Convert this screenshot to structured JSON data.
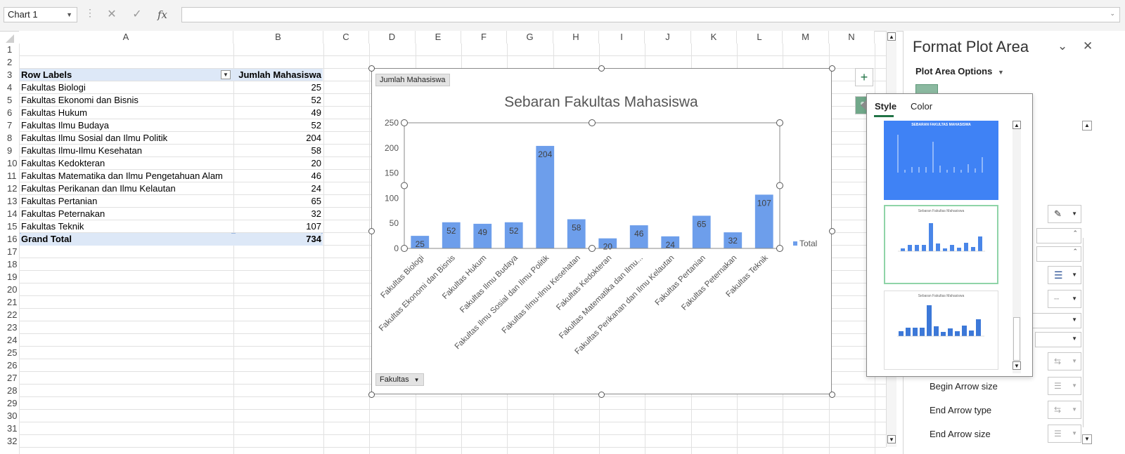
{
  "formula_bar": {
    "name_box": "Chart 1",
    "fx_label": "fx",
    "cancel_symbol": "✕",
    "enter_symbol": "✓",
    "formula": ""
  },
  "columns": [
    "A",
    "B",
    "C",
    "D",
    "E",
    "F",
    "G",
    "H",
    "I",
    "J",
    "K",
    "L",
    "M",
    "N"
  ],
  "rows": [
    "1",
    "2",
    "3",
    "4",
    "5",
    "6",
    "7",
    "8",
    "9",
    "10",
    "11",
    "12",
    "13",
    "14",
    "15",
    "16",
    "17",
    "18",
    "19",
    "20",
    "21",
    "22",
    "23",
    "24",
    "25",
    "26",
    "27",
    "28",
    "29",
    "30",
    "31",
    "32"
  ],
  "pivot": {
    "header_label": "Row Labels",
    "header_value": "Jumlah Mahasiswa",
    "rows": [
      {
        "label": "Fakultas Biologi",
        "value": "25"
      },
      {
        "label": "Fakultas Ekonomi dan Bisnis",
        "value": "52"
      },
      {
        "label": "Fakultas Hukum",
        "value": "49"
      },
      {
        "label": "Fakultas Ilmu Budaya",
        "value": "52"
      },
      {
        "label": "Fakultas Ilmu Sosial dan Ilmu Politik",
        "value": "204"
      },
      {
        "label": "Fakultas Ilmu-Ilmu Kesehatan",
        "value": "58"
      },
      {
        "label": "Fakultas Kedokteran",
        "value": "20"
      },
      {
        "label": "Fakultas Matematika dan Ilmu Pengetahuan Alam",
        "value": "46"
      },
      {
        "label": "Fakultas Perikanan dan Ilmu Kelautan",
        "value": "24"
      },
      {
        "label": "Fakultas Pertanian",
        "value": "65"
      },
      {
        "label": "Fakultas Peternakan",
        "value": "32"
      },
      {
        "label": "Fakultas Teknik",
        "value": "107"
      }
    ],
    "total_label": "Grand Total",
    "total_value": "734"
  },
  "chart_data": {
    "type": "bar",
    "title": "Sebaran Fakultas Mahasiswa",
    "categories": [
      "Fakultas Biologi",
      "Fakultas Ekonomi dan Bisnis",
      "Fakultas Hukum",
      "Fakultas Ilmu Budaya",
      "Fakultas Ilmu Sosial dan Ilmu Politik",
      "Fakultas Ilmu-Ilmu Kesehatan",
      "Fakultas Kedokteran",
      "Fakultas Matematika dan Ilmu...",
      "Fakultas Perikanan dan Ilmu Kelautan",
      "Fakultas Pertanian",
      "Fakultas Peternakan",
      "Fakultas Teknik"
    ],
    "series": [
      {
        "name": "Total",
        "values": [
          25,
          52,
          49,
          52,
          204,
          58,
          20,
          46,
          24,
          65,
          32,
          107
        ]
      }
    ],
    "ylim": [
      0,
      250
    ],
    "yticks": [
      0,
      50,
      100,
      150,
      200,
      250
    ],
    "grid": false,
    "legend": "right",
    "bar_color": "#6d9eeb",
    "value_field_button": "Jumlah Mahasiswa",
    "axis_field_button": "Fakultas"
  },
  "style_popup": {
    "tabs": [
      "Style",
      "Color"
    ],
    "thumb1_title": "SEBARAN FAKULTAS MAHASISWA",
    "thumb2_title": "Sebaran Fakultas Mahasiswa",
    "thumb3_title": "Sebaran Fakultas Mahasiswa"
  },
  "format_pane": {
    "title": "Format Plot Area",
    "options_label": "Plot Area Options",
    "rows": [
      "Begin Arrow size",
      "End Arrow type",
      "End Arrow size"
    ]
  },
  "colors": {
    "accent": "#217346",
    "pivot_header": "#dde8f7",
    "bar": "#6d9eeb"
  }
}
